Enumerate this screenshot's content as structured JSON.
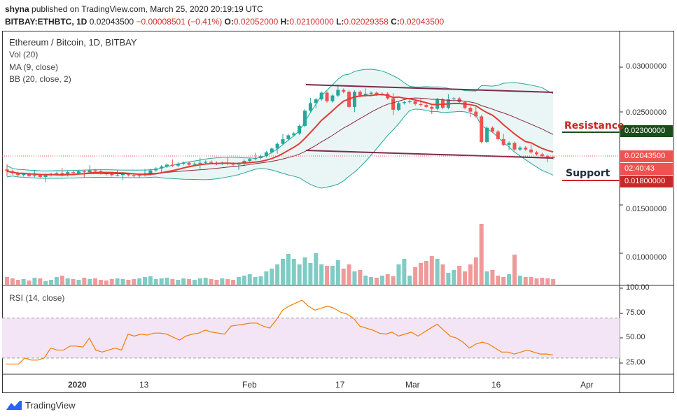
{
  "header": {
    "user": "shyna",
    "published": "published on TradingView.com, March 25, 2020 20:19:19 UTC",
    "symbol": "BITBAY:ETHBTC, 1D",
    "last": "0.02043500",
    "change": "−0.00008501 (−0.41%)",
    "o_label": "O:",
    "o": "0.02052000",
    "h_label": "H:",
    "h": "0.02100000",
    "l_label": "L:",
    "l": "0.02029358",
    "c_label": "C:",
    "c": "0.02043500"
  },
  "legend": {
    "title": "Ethereum / Bitcoin, 1D, BITBAY",
    "vol": "Vol (20)",
    "ma": "MA (9, close)",
    "bb": "BB (20, close, 2)",
    "rsi": "RSI (14, close)"
  },
  "price_axis": [
    "0.03000000",
    "0.02500000",
    "0.01500000",
    "0.01000000"
  ],
  "tags": {
    "resistance_price": "0.02300000",
    "current_price": "0.02043500",
    "countdown": "02:40:43",
    "support_price": "0.01800000"
  },
  "annotations": {
    "resistance": "Resistance",
    "support": "Support"
  },
  "rsi_axis": [
    "100.00",
    "75.00",
    "50.00",
    "25.00"
  ],
  "x_axis": [
    "2020",
    "13",
    "Feb",
    "17",
    "Mar",
    "16",
    "Apr"
  ],
  "brand": "TradingView",
  "colors": {
    "up": "#26a69a",
    "down": "#ef5350",
    "ma": "#e53935",
    "bb": "#26a69a",
    "rsi": "#f57c00",
    "trend": "#7b2c4a"
  }
}
